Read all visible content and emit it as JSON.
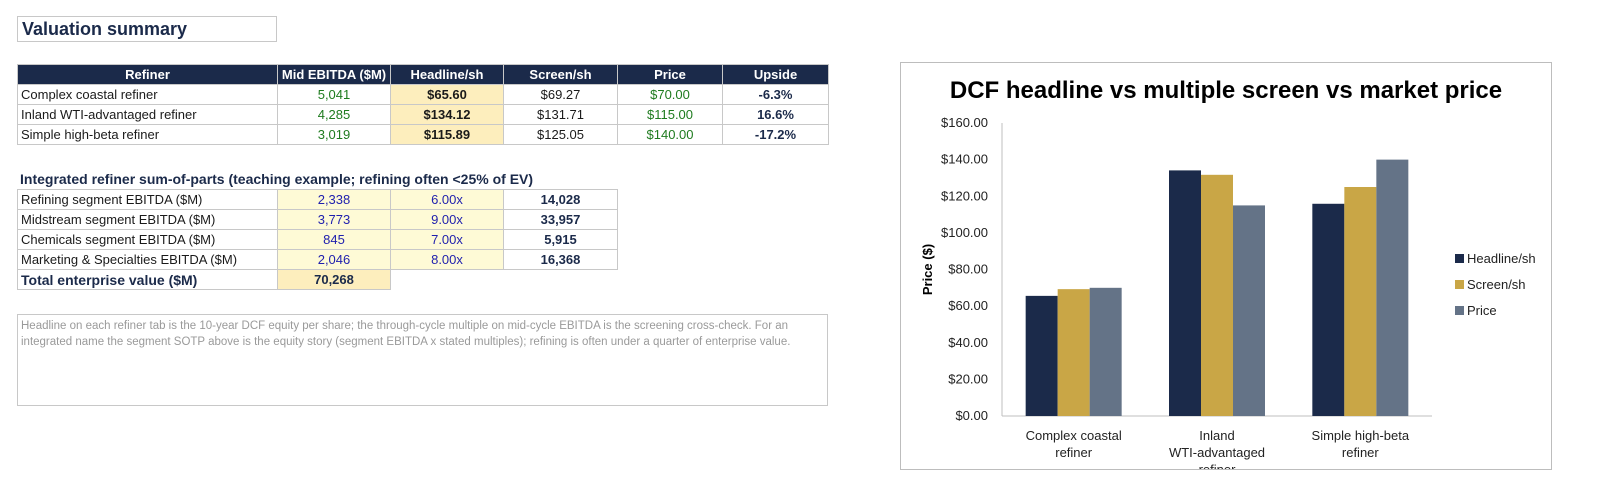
{
  "header": {
    "title": "Valuation summary"
  },
  "valuation_table": {
    "columns": [
      "Refiner",
      "Mid EBITDA ($M)",
      "Headline/sh",
      "Screen/sh",
      "Price",
      "Upside"
    ],
    "rows": [
      {
        "refiner": "Complex coastal refiner",
        "mid_ebitda": "5,041",
        "headline": "$65.60",
        "screen": "$69.27",
        "price": "$70.00",
        "upside": "-6.3%"
      },
      {
        "refiner": "Inland WTI-advantaged refiner",
        "mid_ebitda": "4,285",
        "headline": "$134.12",
        "screen": "$131.71",
        "price": "$115.00",
        "upside": "16.6%"
      },
      {
        "refiner": "Simple high-beta refiner",
        "mid_ebitda": "3,019",
        "headline": "$115.89",
        "screen": "$125.05",
        "price": "$140.00",
        "upside": "-17.2%"
      }
    ]
  },
  "sotp": {
    "title": "Integrated refiner sum-of-parts (teaching example; refining often <25% of EV)",
    "rows": [
      {
        "label": "Refining segment EBITDA ($M)",
        "ebitda": "2,338",
        "multiple": "6.00x",
        "value": "14,028"
      },
      {
        "label": "Midstream segment EBITDA ($M)",
        "ebitda": "3,773",
        "multiple": "9.00x",
        "value": "33,957"
      },
      {
        "label": "Chemicals segment EBITDA ($M)",
        "ebitda": "845",
        "multiple": "7.00x",
        "value": "5,915"
      },
      {
        "label": "Marketing & Specialties EBITDA ($M)",
        "ebitda": "2,046",
        "multiple": "8.00x",
        "value": "16,368"
      }
    ],
    "total_label": "Total enterprise value ($M)",
    "total_value": "70,268"
  },
  "note": {
    "text": "Headline on each refiner tab is the 10-year DCF equity per share; the through-cycle multiple on mid-cycle EBITDA is the screening cross-check. For an integrated name the segment SOTP above is the equity story (segment EBITDA x stated multiples); refining is often under a quarter of enterprise value."
  },
  "chart_data": {
    "type": "bar",
    "title": "DCF headline vs multiple screen vs market price",
    "xlabel": "",
    "ylabel": "Price ($)",
    "categories": [
      "Complex coastal refiner",
      "Inland WTI-advantaged refiner",
      "Simple high-beta refiner"
    ],
    "series": [
      {
        "name": "Headline/sh",
        "values": [
          65.6,
          134.12,
          115.89
        ],
        "color": "#1b2a4a"
      },
      {
        "name": "Screen/sh",
        "values": [
          69.27,
          131.71,
          125.05
        ],
        "color": "#c9a646"
      },
      {
        "name": "Price",
        "values": [
          70.0,
          115.0,
          140.0
        ],
        "color": "#647387"
      }
    ],
    "ylim": [
      0,
      160
    ],
    "yticks": [
      "$0.00",
      "$20.00",
      "$40.00",
      "$60.00",
      "$80.00",
      "$100.00",
      "$120.00",
      "$140.00",
      "$160.00"
    ],
    "grid": false,
    "legend_position": "right"
  }
}
